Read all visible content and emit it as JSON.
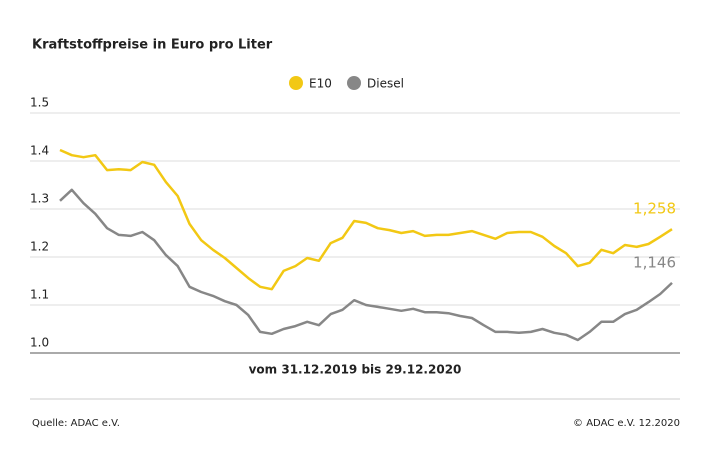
{
  "chart_data": {
    "type": "line",
    "title": "Kraftstoffpreise in Euro pro Liter",
    "xlabel": "vom 31.12.2019 bis 29.12.2020",
    "source": "Quelle: ADAC e.V.",
    "credit": "© ADAC e.V. 12.2020",
    "ylim": [
      1,
      1.5
    ],
    "yticks": [
      {
        "value": 1,
        "label": "1.0"
      },
      1.1,
      1.2,
      1.3,
      1.4,
      1.5
    ],
    "grid": true,
    "legend": "top",
    "series": [
      {
        "name": "E10",
        "color": "#f2c814",
        "values": [
          1.423,
          1.412,
          1.408,
          1.412,
          1.381,
          1.383,
          1.381,
          1.398,
          1.392,
          1.356,
          1.327,
          1.269,
          1.235,
          1.215,
          1.198,
          1.177,
          1.156,
          1.138,
          1.133,
          1.171,
          1.181,
          1.198,
          1.192,
          1.229,
          1.24,
          1.275,
          1.271,
          1.26,
          1.256,
          1.25,
          1.254,
          1.244,
          1.246,
          1.246,
          1.25,
          1.254,
          1.246,
          1.238,
          1.25,
          1.252,
          1.252,
          1.242,
          1.223,
          1.208,
          1.181,
          1.188,
          1.215,
          1.208,
          1.225,
          1.221,
          1.227,
          1.242,
          1.258
        ],
        "value_labels": [
          null,
          null,
          null,
          null,
          null,
          null,
          null,
          null,
          null,
          null,
          null,
          null,
          null,
          null,
          null,
          null,
          null,
          null,
          null,
          null,
          null,
          null,
          null,
          null,
          null,
          null,
          null,
          null,
          null,
          null,
          null,
          null,
          null,
          null,
          null,
          null,
          null,
          null,
          null,
          null,
          null,
          null,
          null,
          null,
          null,
          null,
          null,
          null,
          null,
          null,
          null,
          null,
          "1,258"
        ]
      },
      {
        "name": "Diesel",
        "color": "#878787",
        "values": [
          1.317,
          1.34,
          1.312,
          1.29,
          1.26,
          1.246,
          1.244,
          1.252,
          1.235,
          1.204,
          1.181,
          1.138,
          1.127,
          1.119,
          1.108,
          1.1,
          1.079,
          1.044,
          1.04,
          1.05,
          1.056,
          1.065,
          1.058,
          1.081,
          1.09,
          1.11,
          1.1,
          1.096,
          1.092,
          1.088,
          1.092,
          1.085,
          1.085,
          1.083,
          1.077,
          1.073,
          1.058,
          1.044,
          1.044,
          1.042,
          1.044,
          1.05,
          1.042,
          1.038,
          1.027,
          1.044,
          1.065,
          1.065,
          1.081,
          1.09,
          1.106,
          1.123,
          1.146
        ],
        "value_labels": [
          null,
          null,
          null,
          null,
          null,
          null,
          null,
          null,
          null,
          null,
          null,
          null,
          null,
          null,
          null,
          null,
          null,
          null,
          null,
          null,
          null,
          null,
          null,
          null,
          null,
          null,
          null,
          null,
          null,
          null,
          null,
          null,
          null,
          null,
          null,
          null,
          null,
          null,
          null,
          null,
          null,
          null,
          null,
          null,
          null,
          null,
          null,
          null,
          null,
          null,
          null,
          null,
          "1,146"
        ]
      }
    ]
  }
}
